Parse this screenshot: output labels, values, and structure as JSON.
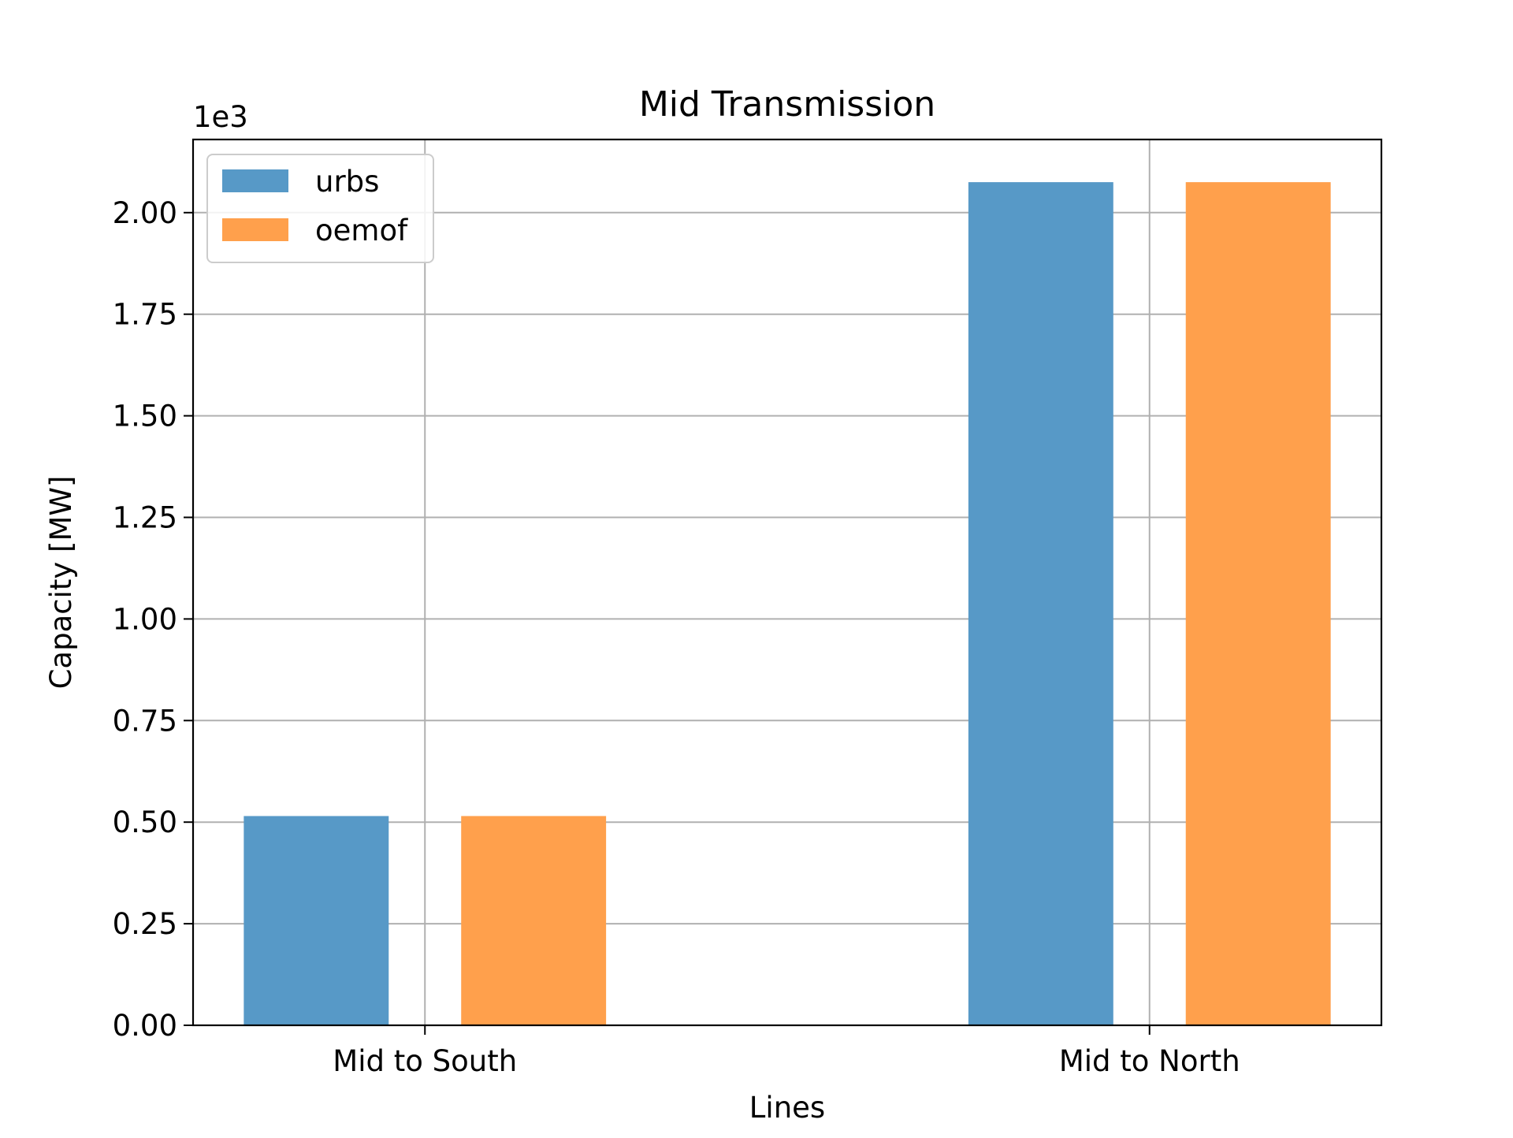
{
  "chart_data": {
    "type": "bar",
    "title": "Mid Transmission",
    "xlabel": "Lines",
    "ylabel": "Capacity [MW]",
    "y_offset_label": "1e3",
    "categories": [
      "Mid to South",
      "Mid to North"
    ],
    "series": [
      {
        "name": "urbs",
        "values": [
          0.515,
          2.075
        ],
        "color": "#5799c7"
      },
      {
        "name": "oemof",
        "values": [
          0.515,
          2.075
        ],
        "color": "#ffa04c"
      }
    ],
    "ylim": [
      0,
      2.18
    ],
    "yticks": [
      "0.00",
      "0.25",
      "0.50",
      "0.75",
      "1.00",
      "1.25",
      "1.50",
      "1.75",
      "2.00"
    ],
    "grid": true,
    "legend_position": "upper-left"
  }
}
